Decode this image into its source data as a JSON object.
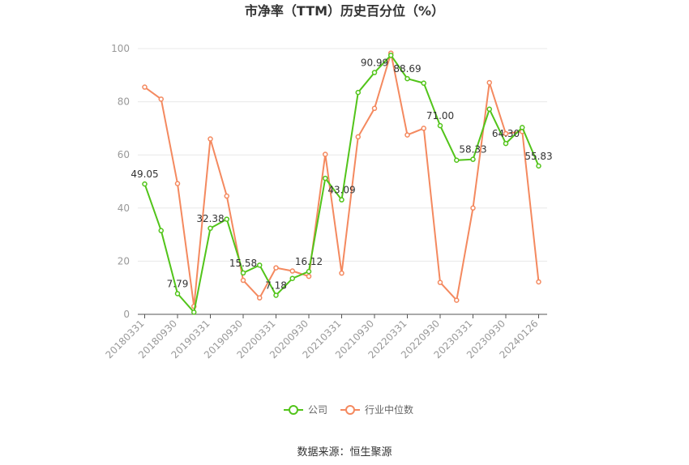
{
  "chart_data": {
    "type": "line",
    "title": "市净率（TTM）历史百分位（%）",
    "xlabel": "",
    "ylabel": "",
    "ylim": [
      0,
      100
    ],
    "yticks": [
      0,
      20,
      40,
      60,
      80,
      100
    ],
    "x_tick_labels": [
      "20180331",
      "20180930",
      "20190331",
      "20190930",
      "20200331",
      "20200930",
      "20210331",
      "20210930",
      "20220331",
      "20220930",
      "20230331",
      "20230930",
      "20240126"
    ],
    "x_tick_every": 2,
    "grid": true,
    "legend_position": "bottom-center",
    "series": [
      {
        "name": "公司",
        "color": "#52c41a",
        "values": [
          49.05,
          31.5,
          7.79,
          0.8,
          32.38,
          35.8,
          15.58,
          18.5,
          7.18,
          13.5,
          16.12,
          51.2,
          43.09,
          83.5,
          90.99,
          97.5,
          88.69,
          87.0,
          71.0,
          58.0,
          58.33,
          77.2,
          64.3,
          70.3,
          55.83
        ]
      },
      {
        "name": "行业中位数",
        "color": "#f4895f",
        "values": [
          85.5,
          81.0,
          49.2,
          3.0,
          66.0,
          44.5,
          12.8,
          6.2,
          17.5,
          16.3,
          14.3,
          60.2,
          15.5,
          66.8,
          77.5,
          98.3,
          67.5,
          70.0,
          12.0,
          5.3,
          40.0,
          87.2,
          68.0,
          68.8,
          12.2
        ]
      }
    ],
    "data_labels": [
      {
        "series": 0,
        "index": 0,
        "text": "49.05"
      },
      {
        "series": 0,
        "index": 2,
        "text": "7.79"
      },
      {
        "series": 0,
        "index": 4,
        "text": "32.38"
      },
      {
        "series": 0,
        "index": 6,
        "text": "15.58"
      },
      {
        "series": 0,
        "index": 8,
        "text": "7.18"
      },
      {
        "series": 0,
        "index": 10,
        "text": "16.12"
      },
      {
        "series": 0,
        "index": 12,
        "text": "43.09"
      },
      {
        "series": 0,
        "index": 14,
        "text": "90.99"
      },
      {
        "series": 0,
        "index": 16,
        "text": "88.69"
      },
      {
        "series": 0,
        "index": 18,
        "text": "71.00"
      },
      {
        "series": 0,
        "index": 20,
        "text": "58.33"
      },
      {
        "series": 0,
        "index": 22,
        "text": "64.30"
      },
      {
        "series": 0,
        "index": 24,
        "text": "55.83"
      }
    ]
  },
  "source_text": "数据来源：恒生聚源"
}
